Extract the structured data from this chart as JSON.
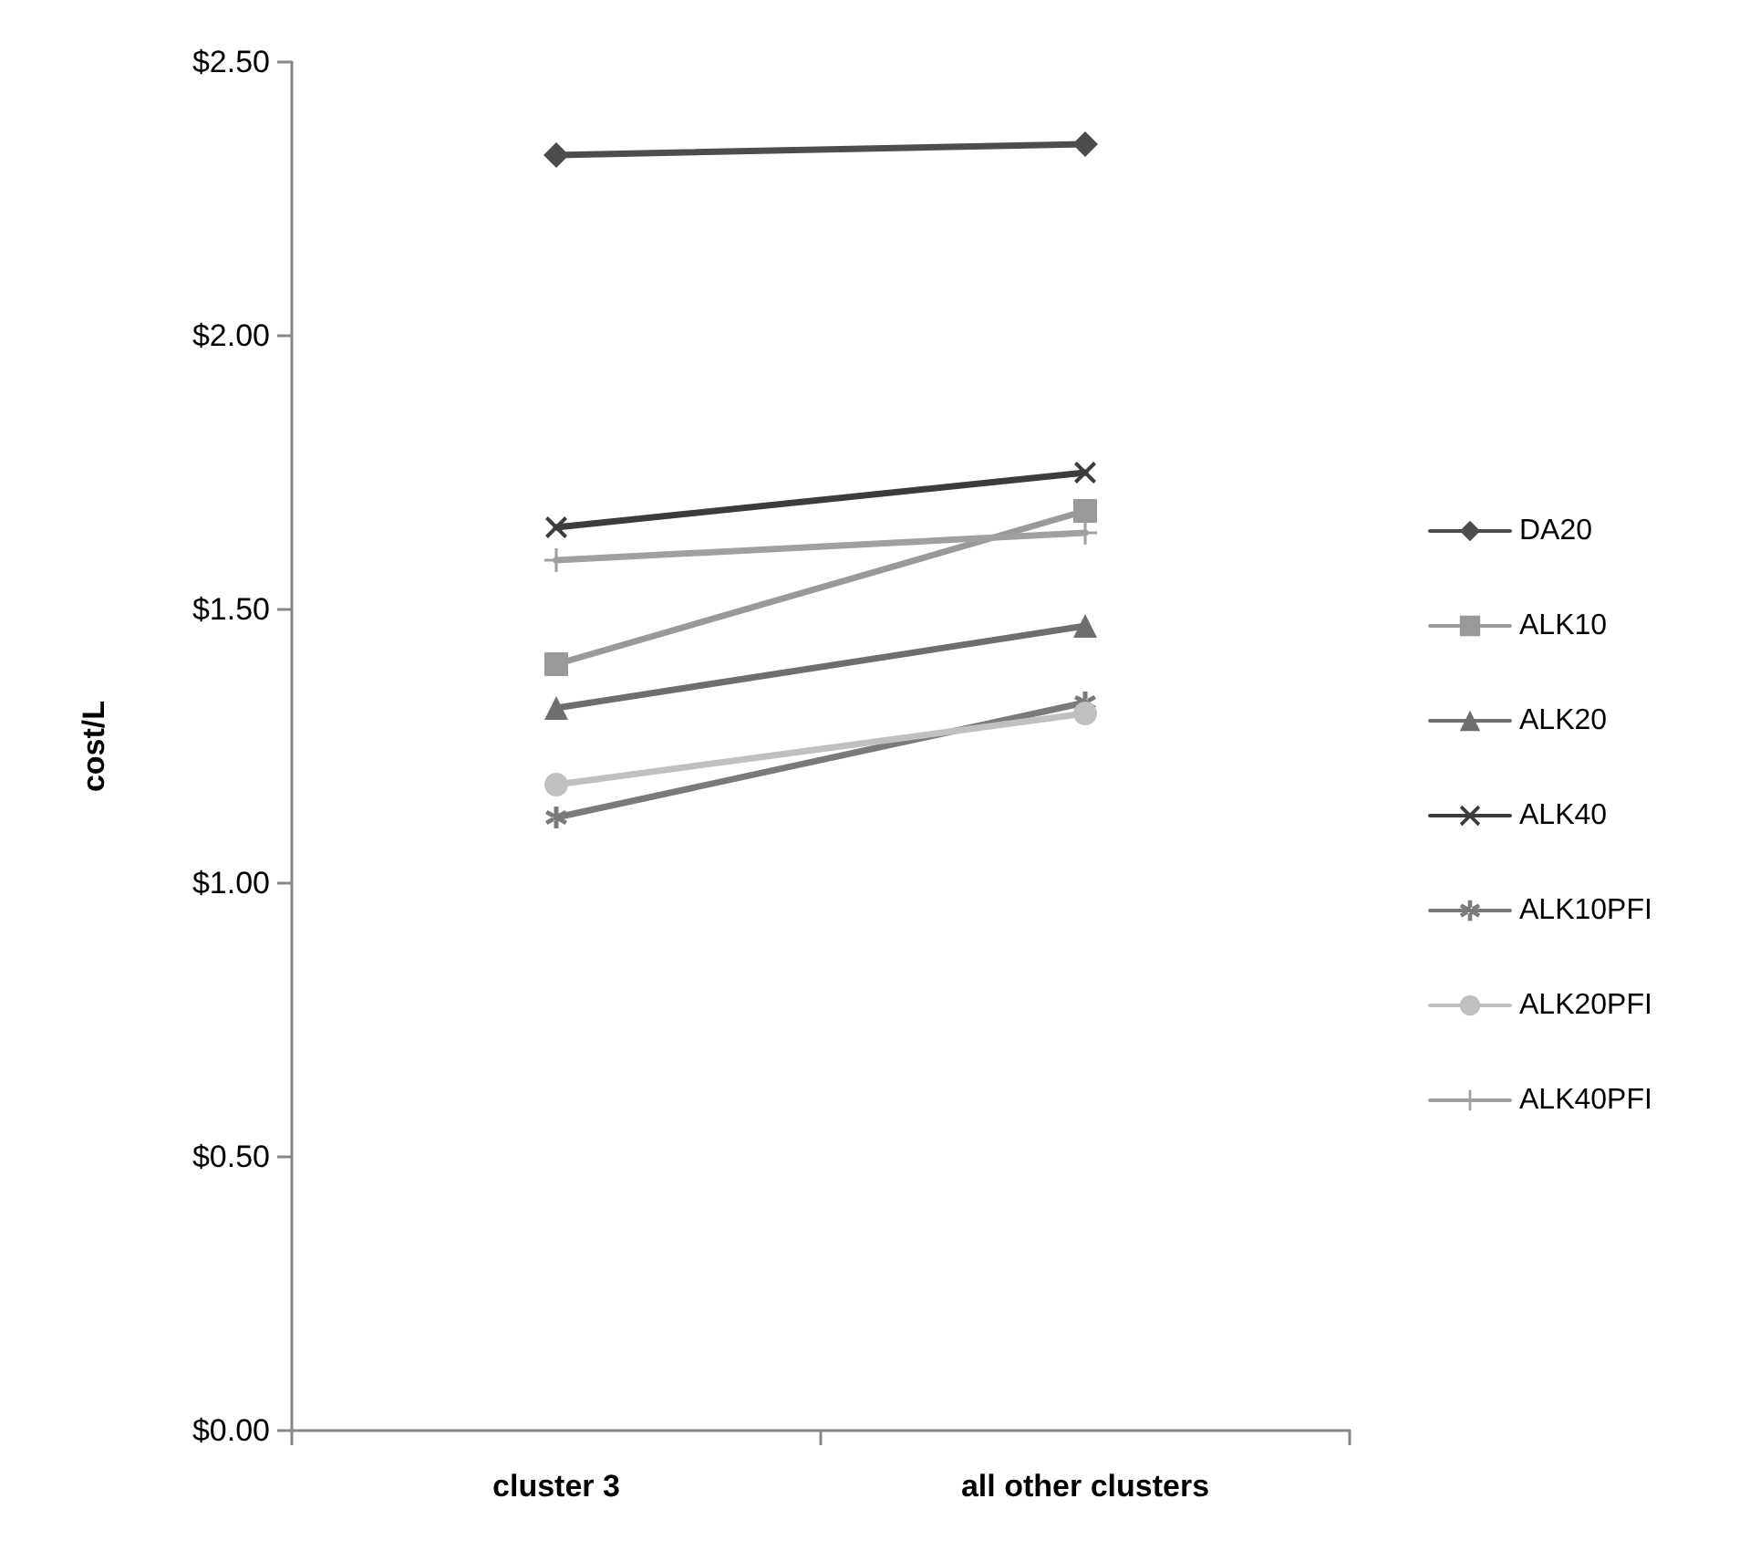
{
  "chart_data": {
    "type": "line",
    "ylabel": "cost/L",
    "categories": [
      "cluster 3",
      "all other clusters"
    ],
    "series": [
      {
        "name": "DA20",
        "color": "#4d4d4d",
        "marker": "diamond",
        "values": [
          2.33,
          2.35
        ]
      },
      {
        "name": "ALK10",
        "color": "#999999",
        "marker": "square",
        "values": [
          1.4,
          1.68
        ]
      },
      {
        "name": "ALK20",
        "color": "#6e6e6e",
        "marker": "triangle",
        "values": [
          1.32,
          1.47
        ]
      },
      {
        "name": "ALK40",
        "color": "#3c3c3c",
        "marker": "cross",
        "values": [
          1.65,
          1.75
        ]
      },
      {
        "name": "ALK10PFI",
        "color": "#7a7a7a",
        "marker": "cross",
        "values": [
          1.12,
          1.33
        ]
      },
      {
        "name": "ALK20PFI",
        "color": "#c0c0c0",
        "marker": "circle",
        "values": [
          1.18,
          1.31
        ]
      },
      {
        "name": "ALK40PFI",
        "color": "#a0a0a0",
        "marker": "plus",
        "values": [
          1.59,
          1.64
        ]
      }
    ],
    "ylim": [
      0,
      2.5
    ],
    "yticks": [
      {
        "value": 0,
        "label": "$0.00"
      },
      {
        "value": 0.5,
        "label": "$0.50"
      },
      {
        "value": 1,
        "label": "$1.00"
      },
      {
        "value": 1.5,
        "label": "$1.50"
      },
      {
        "value": 2,
        "label": "$2.00"
      },
      {
        "value": 2.5,
        "label": "$2.50"
      }
    ],
    "legend": "right"
  }
}
